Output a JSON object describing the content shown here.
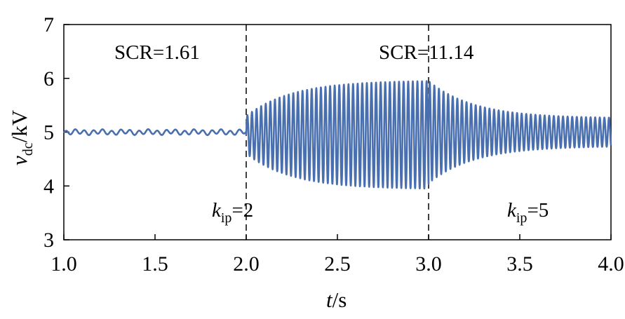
{
  "chart_data": {
    "type": "line",
    "title": "",
    "xlabel": {
      "var": "t",
      "unit": "/s"
    },
    "ylabel": {
      "var": "v",
      "sub": "dc",
      "unit": "/kV"
    },
    "xlim": [
      1.0,
      4.0
    ],
    "ylim": [
      3,
      7
    ],
    "x_ticks": [
      "1.0",
      "1.5",
      "2.0",
      "2.5",
      "3.0",
      "3.5",
      "4.0"
    ],
    "y_ticks": [
      "3",
      "4",
      "5",
      "6",
      "7"
    ],
    "grid": false,
    "line_color": "#4a6fae",
    "vlines": [
      2.0,
      3.0
    ],
    "annotations": {
      "scr_left": "SCR=1.61",
      "scr_right": "SCR=11.14",
      "kip_left": {
        "var": "k",
        "sub": "ip",
        "rest": "=2"
      },
      "kip_right": {
        "var": "k",
        "sub": "ip",
        "rest": "=5"
      }
    },
    "series": [
      {
        "segments": [
          {
            "t_start": 1.0,
            "t_end": 2.0,
            "mean": 5.0,
            "amplitude_kV": 0.04,
            "period_s": 0.05
          },
          {
            "t_start": 2.0,
            "t_end": 3.0,
            "mean": 4.95,
            "amplitude_kV": [
              0.35,
              1.0
            ],
            "period_s": 0.0252
          },
          {
            "t_start": 3.0,
            "t_end": 4.0,
            "mean": 5.0,
            "amplitude_kV": [
              0.95,
              0.27
            ],
            "period_s": 0.0252
          }
        ]
      }
    ]
  }
}
